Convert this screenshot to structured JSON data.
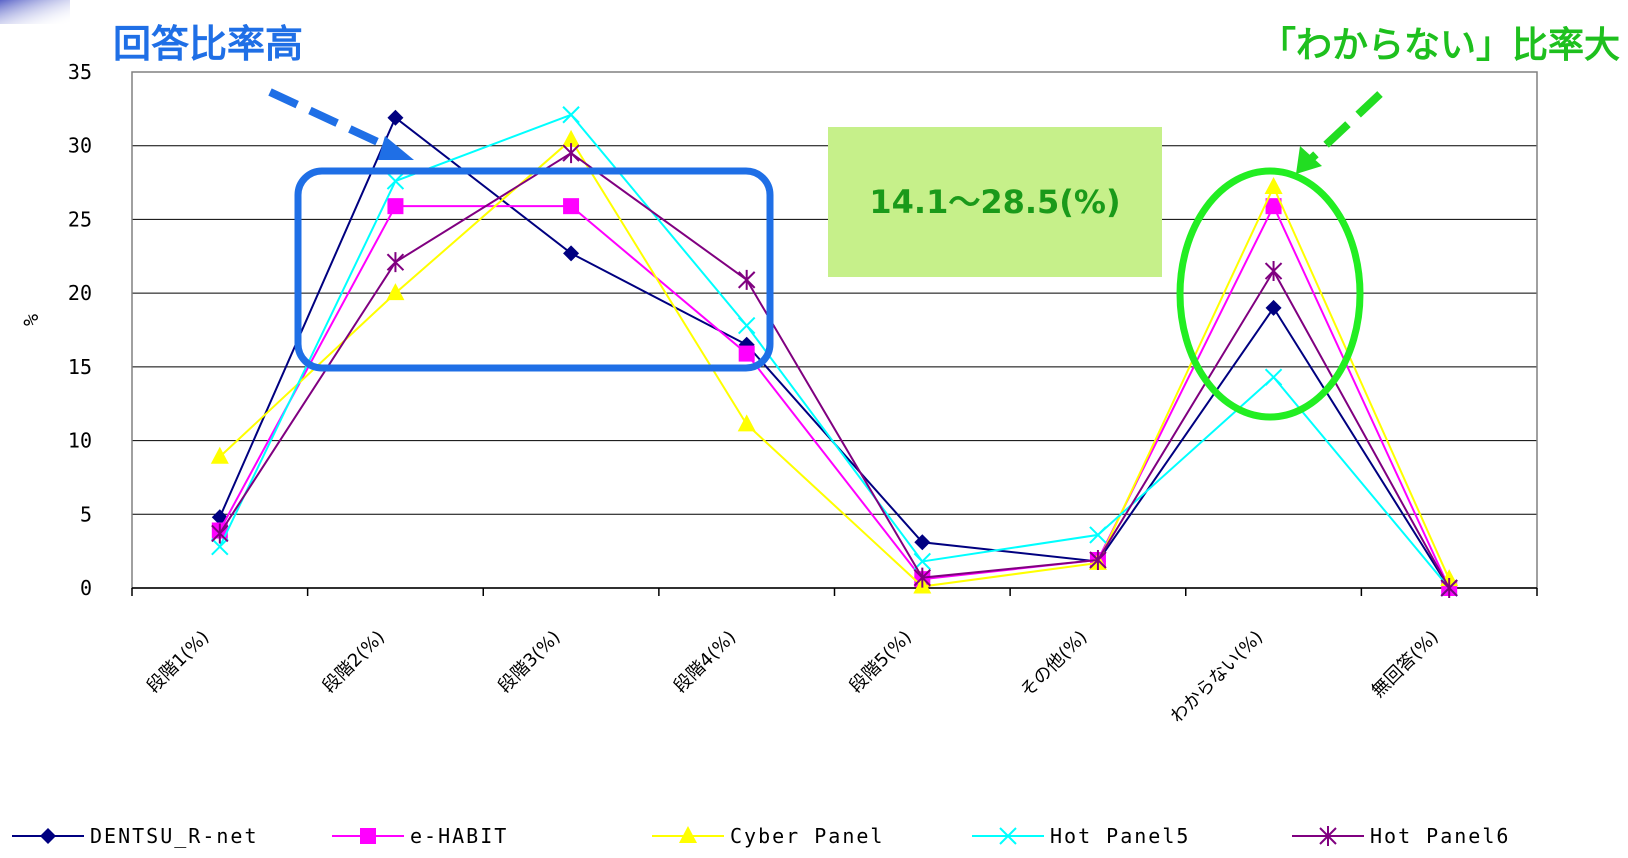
{
  "chart_data": {
    "type": "line",
    "categories": [
      "段階1(%)",
      "段階2(%)",
      "段階3(%)",
      "段階4(%)",
      "段階5(%)",
      "その他(%)",
      "わからない(%)",
      "無回答(%)"
    ],
    "ylabel": "%",
    "ylim": [
      0,
      35
    ],
    "yticks": [
      0,
      5,
      10,
      15,
      20,
      25,
      30,
      35
    ],
    "grid": true,
    "legend": "bottom",
    "series": [
      {
        "name": "DENTSU_R-net",
        "color": "#000080",
        "marker": "diamond",
        "values": [
          4.8,
          31.9,
          22.7,
          16.5,
          3.1,
          1.8,
          19.0,
          0.0
        ]
      },
      {
        "name": "e-HABIT",
        "color": "#ff00ff",
        "marker": "square",
        "values": [
          3.9,
          25.9,
          25.9,
          15.9,
          0.6,
          1.9,
          25.9,
          0.0
        ]
      },
      {
        "name": "Cyber Panel",
        "color": "#ffff00",
        "marker": "triangle",
        "values": [
          8.9,
          20.0,
          30.4,
          11.1,
          0.1,
          1.7,
          27.2,
          0.6
        ]
      },
      {
        "name": "Hot Panel5",
        "color": "#00ffff",
        "marker": "x",
        "values": [
          2.8,
          27.6,
          32.1,
          17.8,
          1.8,
          3.6,
          14.3,
          0.0
        ]
      },
      {
        "name": "Hot Panel6",
        "color": "#800080",
        "marker": "asterisk",
        "values": [
          3.7,
          22.1,
          29.5,
          20.9,
          0.7,
          1.9,
          21.5,
          0.0
        ]
      }
    ],
    "annotations": {
      "high_ratio": "回答比率高",
      "dont_know": "「わからない」比率大",
      "range_box": "14.1～28.5(%)"
    }
  }
}
